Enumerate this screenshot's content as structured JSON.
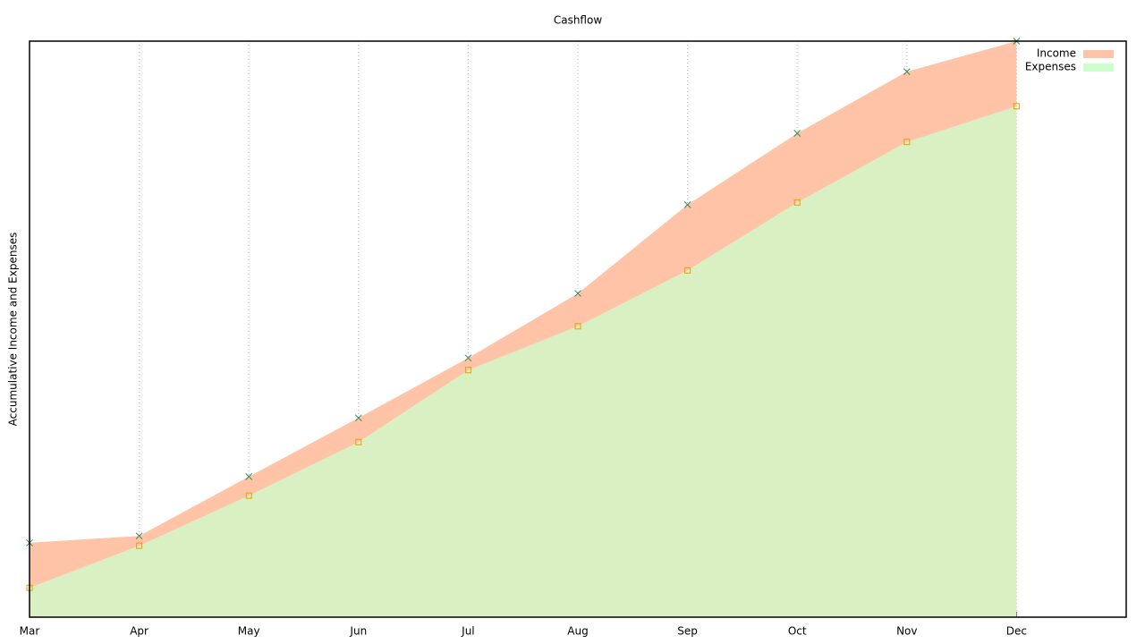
{
  "chart_data": {
    "type": "area",
    "title": "Cashflow",
    "y_label": "Accumulative Income and Expenses",
    "categories": [
      "Mar",
      "Apr",
      "May",
      "Jun",
      "Jul",
      "Aug",
      "Sep",
      "Oct",
      "Nov",
      "Dec"
    ],
    "series": [
      {
        "name": "Income",
        "color": "#ffc4a8",
        "marker": "cross",
        "marker_color": "#2e8b57",
        "values": [
          12.9,
          14.1,
          24.4,
          34.6,
          45.0,
          56.2,
          71.6,
          84.0,
          94.7,
          100
        ]
      },
      {
        "name": "Expenses",
        "color": "#ccffcc",
        "marker": "square",
        "marker_color": "#e8a000",
        "values": [
          5.1,
          12.4,
          21.1,
          30.4,
          42.9,
          50.5,
          60.2,
          72.0,
          82.5,
          88.7
        ]
      }
    ],
    "ylim": [
      0,
      100
    ],
    "grid": true,
    "legend": "top-right"
  }
}
